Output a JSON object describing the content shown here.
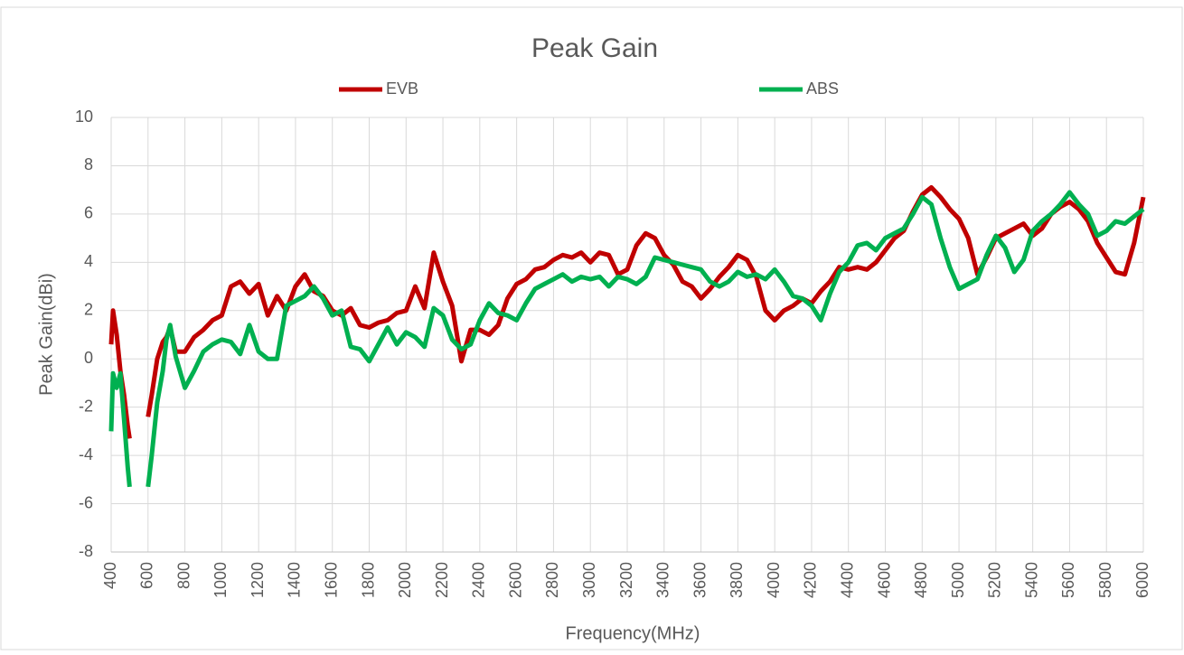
{
  "chart_data": {
    "type": "line",
    "title": "Peak Gain",
    "xlabel": "Frequency(MHz)",
    "ylabel": "Peak Gain(dBi)",
    "legend": "top",
    "grid": true,
    "xlim": [
      400,
      6000
    ],
    "xticks": [
      400,
      600,
      800,
      1000,
      1200,
      1400,
      1600,
      1800,
      2000,
      2200,
      2400,
      2600,
      2800,
      3000,
      3200,
      3400,
      3600,
      3800,
      4000,
      4200,
      4400,
      4600,
      4800,
      5000,
      5200,
      5400,
      5600,
      5800,
      6000
    ],
    "ylim": [
      -8,
      10
    ],
    "yticks": [
      -8,
      -6,
      -4,
      -2,
      0,
      2,
      4,
      6,
      8,
      10
    ],
    "x": [
      400,
      410,
      430,
      450,
      470,
      490,
      500,
      550,
      600,
      620,
      650,
      680,
      700,
      720,
      750,
      800,
      850,
      900,
      950,
      1000,
      1050,
      1100,
      1150,
      1200,
      1250,
      1300,
      1350,
      1400,
      1450,
      1500,
      1550,
      1600,
      1650,
      1700,
      1750,
      1800,
      1850,
      1900,
      1950,
      2000,
      2050,
      2100,
      2150,
      2200,
      2250,
      2300,
      2350,
      2400,
      2450,
      2500,
      2550,
      2600,
      2650,
      2700,
      2750,
      2800,
      2850,
      2900,
      2950,
      3000,
      3050,
      3100,
      3150,
      3200,
      3250,
      3300,
      3350,
      3400,
      3450,
      3500,
      3550,
      3600,
      3650,
      3700,
      3750,
      3800,
      3850,
      3900,
      3950,
      4000,
      4050,
      4100,
      4150,
      4200,
      4250,
      4300,
      4350,
      4400,
      4450,
      4500,
      4550,
      4600,
      4650,
      4700,
      4750,
      4800,
      4850,
      4900,
      4950,
      5000,
      5050,
      5100,
      5150,
      5200,
      5250,
      5300,
      5350,
      5400,
      5450,
      5500,
      5550,
      5600,
      5650,
      5700,
      5750,
      5800,
      5850,
      5900,
      5950,
      6000
    ],
    "series": [
      {
        "name": "EVB",
        "color": "#c00000",
        "values": [
          0.6,
          2.0,
          1.0,
          -0.5,
          -1.5,
          -2.8,
          -3.3,
          null,
          -2.4,
          -1.5,
          0,
          0.7,
          0.9,
          1.3,
          0.3,
          0.3,
          0.9,
          1.2,
          1.6,
          1.8,
          3.0,
          3.2,
          2.7,
          3.1,
          1.8,
          2.6,
          2.0,
          3.0,
          3.5,
          2.8,
          2.6,
          2.0,
          1.8,
          2.1,
          1.4,
          1.3,
          1.5,
          1.6,
          1.9,
          2.0,
          3.0,
          2.1,
          4.4,
          3.2,
          2.2,
          -0.1,
          1.2,
          1.2,
          1.0,
          1.4,
          2.5,
          3.1,
          3.3,
          3.7,
          3.8,
          4.1,
          4.3,
          4.2,
          4.4,
          4.0,
          4.4,
          4.3,
          3.5,
          3.7,
          4.7,
          5.2,
          5.0,
          4.3,
          3.9,
          3.2,
          3.0,
          2.5,
          2.9,
          3.4,
          3.8,
          4.3,
          4.1,
          3.4,
          2.0,
          1.6,
          2.0,
          2.2,
          2.5,
          2.3,
          2.8,
          3.2,
          3.8,
          3.7,
          3.8,
          3.7,
          4.0,
          4.5,
          5.0,
          5.3,
          6.1,
          6.8,
          7.1,
          6.7,
          6.2,
          5.8,
          5.0,
          3.5,
          4.2,
          5.0,
          5.2,
          5.4,
          5.6,
          5.1,
          5.4,
          6.0,
          6.3,
          6.5,
          6.2,
          5.7,
          4.8,
          4.2,
          3.6,
          3.5,
          4.8,
          6.7
        ]
      },
      {
        "name": "ABS",
        "color": "#00b050",
        "values": [
          -3.0,
          -0.6,
          -1.2,
          -0.6,
          -2.5,
          -4.5,
          -5.3,
          null,
          -5.3,
          -4.0,
          -1.8,
          -0.5,
          0.8,
          1.4,
          0.1,
          -1.2,
          -0.5,
          0.3,
          0.6,
          0.8,
          0.7,
          0.2,
          1.4,
          0.3,
          0.0,
          0.0,
          2.2,
          2.4,
          2.6,
          3.0,
          2.5,
          1.8,
          2.0,
          0.5,
          0.4,
          -0.1,
          0.6,
          1.3,
          0.6,
          1.1,
          0.9,
          0.5,
          2.1,
          1.8,
          0.8,
          0.4,
          0.6,
          1.6,
          2.3,
          1.9,
          1.8,
          1.6,
          2.3,
          2.9,
          3.1,
          3.3,
          3.5,
          3.2,
          3.4,
          3.3,
          3.4,
          3.0,
          3.4,
          3.3,
          3.1,
          3.4,
          4.2,
          4.1,
          4.0,
          3.9,
          3.8,
          3.7,
          3.2,
          3.0,
          3.2,
          3.6,
          3.4,
          3.5,
          3.3,
          3.7,
          3.2,
          2.6,
          2.5,
          2.2,
          1.6,
          2.7,
          3.6,
          4.0,
          4.7,
          4.8,
          4.5,
          5.0,
          5.2,
          5.4,
          6.0,
          6.7,
          6.4,
          5.0,
          3.8,
          2.9,
          3.1,
          3.3,
          4.3,
          5.1,
          4.6,
          3.6,
          4.1,
          5.3,
          5.7,
          6.0,
          6.4,
          6.9,
          6.4,
          6.0,
          5.1,
          5.3,
          5.7,
          5.6,
          5.9,
          6.2
        ]
      }
    ]
  }
}
